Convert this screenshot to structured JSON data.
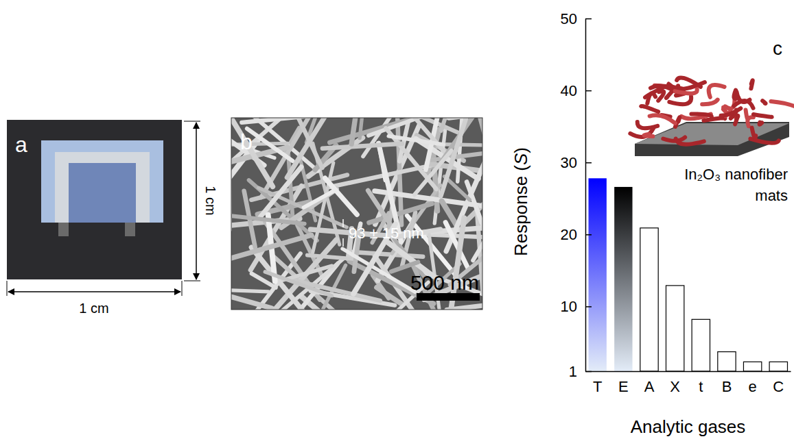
{
  "panels": [
    {
      "label": "a",
      "width_label": "1 cm",
      "height_label": "1 cm"
    },
    {
      "label": "b",
      "annotation": "93 ± 15 nm",
      "scale_bar": "500 nm"
    },
    {
      "label": "c"
    }
  ],
  "chart_data": {
    "type": "bar",
    "categories": [
      "T",
      "E",
      "A",
      "X",
      "t",
      "B",
      "e",
      "C"
    ],
    "values": [
      27.8,
      26.6,
      20.9,
      12.9,
      8.2,
      3.7,
      2.3,
      2.3
    ],
    "colors": [
      "#0000ff",
      "#000000",
      "#ffffff",
      "#ffffff",
      "#ffffff",
      "#ffffff",
      "#ffffff",
      "#ffffff"
    ],
    "ylim": [
      1,
      50
    ],
    "yticks": [
      1,
      10,
      20,
      30,
      40,
      50
    ],
    "y_label": "Response (S)",
    "x_label": "Analytic gases",
    "annotations": [
      "In₂O₃ nanofiber mats"
    ]
  }
}
